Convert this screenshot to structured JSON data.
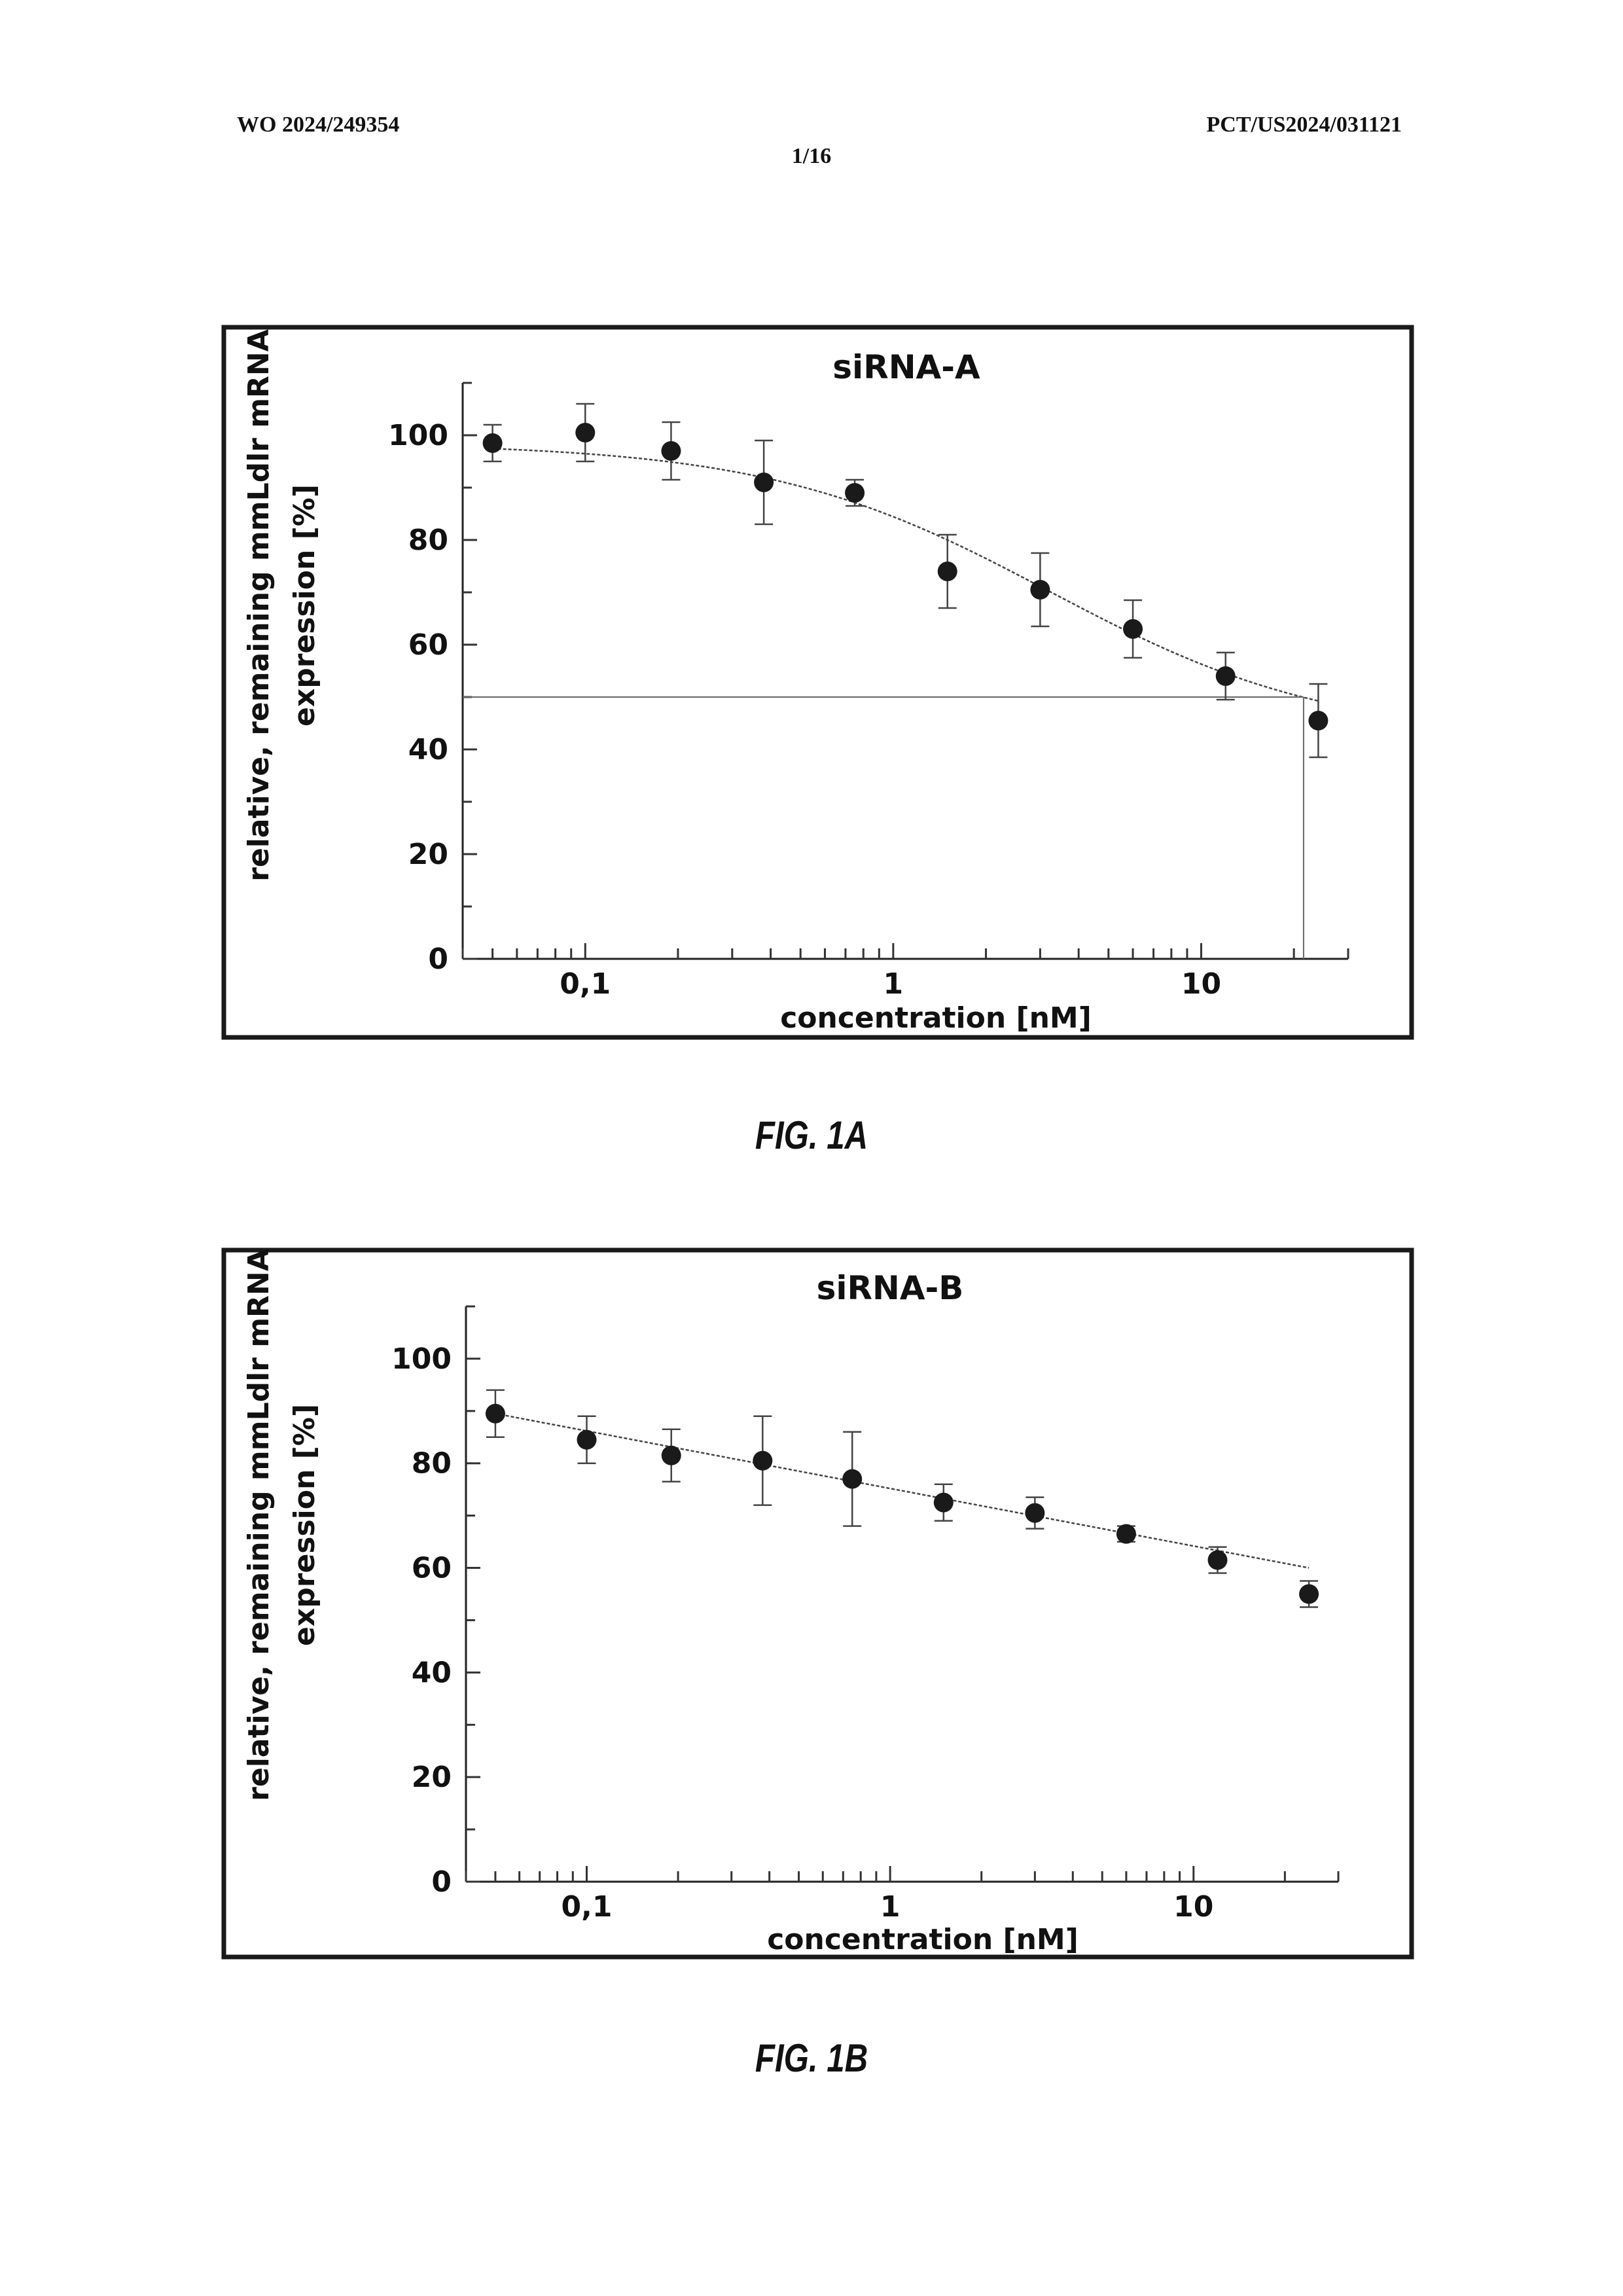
{
  "header": {
    "left": "WO 2024/249354",
    "right": "PCT/US2024/031121",
    "page": "1/16"
  },
  "figures": [
    {
      "label": "FIG. 1A"
    },
    {
      "label": "FIG. 1B"
    }
  ],
  "chart_data": [
    {
      "type": "scatter",
      "title": "siRNA-A",
      "xlabel": "concentration [nM]",
      "ylabel_line1": "relative, remaining mmLdlr mRNA",
      "ylabel_line2": "expression [%]",
      "x_scale": "log",
      "xlim": [
        0.04,
        30
      ],
      "ylim": [
        0,
        110
      ],
      "x_tick_labels": [
        "0,1",
        "1",
        "10"
      ],
      "x_tick_values": [
        0.1,
        1,
        10
      ],
      "y_tick_labels": [
        "0",
        "20",
        "40",
        "60",
        "80",
        "100"
      ],
      "y_tick_values": [
        0,
        20,
        40,
        60,
        80,
        100
      ],
      "x": [
        0.05,
        0.1,
        0.19,
        0.38,
        0.75,
        1.5,
        3,
        6,
        12,
        24
      ],
      "y": [
        98.5,
        100.5,
        97,
        91,
        89,
        74,
        70.5,
        63,
        54,
        45.5
      ],
      "err": [
        3.5,
        5.5,
        5.5,
        8,
        2.5,
        7,
        7,
        5.5,
        4.5,
        7
      ],
      "fit": "sigmoid",
      "fit_params": {
        "top": 98.5,
        "bottom": 42,
        "ic50": 3.2,
        "hill": 0.95
      },
      "reference_y": 50,
      "reference_x": 21.5,
      "grid": false
    },
    {
      "type": "scatter",
      "title": "siRNA-B",
      "xlabel": "concentration [nM]",
      "ylabel_line1": "relative, remaining mmLdlr mRNA",
      "ylabel_line2": "expression [%]",
      "x_scale": "log",
      "xlim": [
        0.04,
        30
      ],
      "ylim": [
        0,
        110
      ],
      "x_tick_labels": [
        "0,1",
        "1",
        "10"
      ],
      "x_tick_values": [
        0.1,
        1,
        10
      ],
      "y_tick_labels": [
        "0",
        "20",
        "40",
        "60",
        "80",
        "100"
      ],
      "y_tick_values": [
        0,
        20,
        40,
        60,
        80,
        100
      ],
      "x": [
        0.05,
        0.1,
        0.19,
        0.38,
        0.75,
        1.5,
        3,
        6,
        12,
        24
      ],
      "y": [
        89.5,
        84.5,
        81.5,
        80.5,
        77,
        72.5,
        70.5,
        66.5,
        61.5,
        55
      ],
      "err": [
        4.5,
        4.5,
        5,
        8.5,
        9,
        3.5,
        3,
        1.5,
        2.5,
        2.5
      ],
      "fit": "linear-in-log",
      "fit_params": {
        "y_at_0_05": 89.5,
        "y_at_24": 60
      },
      "grid": false
    }
  ]
}
